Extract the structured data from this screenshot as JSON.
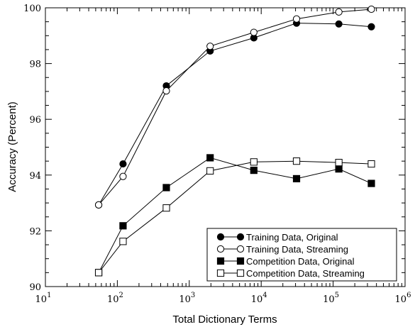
{
  "chart_data": {
    "type": "line",
    "xscale": "log",
    "xlabel": "Total Dictionary Terms",
    "ylabel": "Accuracy (Percent)",
    "xlim": [
      10,
      1000000
    ],
    "ylim": [
      90,
      100
    ],
    "x_tick_labels": [
      {
        "base": "10",
        "exp": "1"
      },
      {
        "base": "10",
        "exp": "2"
      },
      {
        "base": "10",
        "exp": "3"
      },
      {
        "base": "10",
        "exp": "4"
      },
      {
        "base": "10",
        "exp": "5"
      },
      {
        "base": "10",
        "exp": "6"
      }
    ],
    "y_tick_labels": [
      "90",
      "92",
      "94",
      "96",
      "98",
      "100"
    ],
    "legend_position": "bottom-right",
    "series": [
      {
        "name": "Training Data, Original",
        "marker": "filled-circle",
        "x": [
          55,
          120,
          480,
          1950,
          7900,
          31000,
          120000,
          340000
        ],
        "y": [
          92.93,
          94.4,
          97.2,
          98.45,
          98.92,
          99.45,
          99.42,
          99.32
        ]
      },
      {
        "name": "Training Data, Streaming",
        "marker": "open-circle",
        "x": [
          55,
          120,
          480,
          1950,
          7900,
          31000,
          120000,
          340000
        ],
        "y": [
          92.93,
          93.95,
          97.02,
          98.62,
          99.12,
          99.6,
          99.85,
          99.95
        ]
      },
      {
        "name": "Competition Data, Original",
        "marker": "filled-square",
        "x": [
          55,
          120,
          480,
          1950,
          7900,
          31000,
          120000,
          340000
        ],
        "y": [
          90.5,
          92.18,
          93.55,
          94.62,
          94.17,
          93.87,
          94.22,
          93.7
        ]
      },
      {
        "name": "Competition Data, Streaming",
        "marker": "open-square",
        "x": [
          55,
          120,
          480,
          1950,
          7900,
          31000,
          120000,
          340000
        ],
        "y": [
          90.5,
          91.62,
          92.82,
          94.15,
          94.47,
          94.5,
          94.45,
          94.4
        ]
      }
    ]
  }
}
